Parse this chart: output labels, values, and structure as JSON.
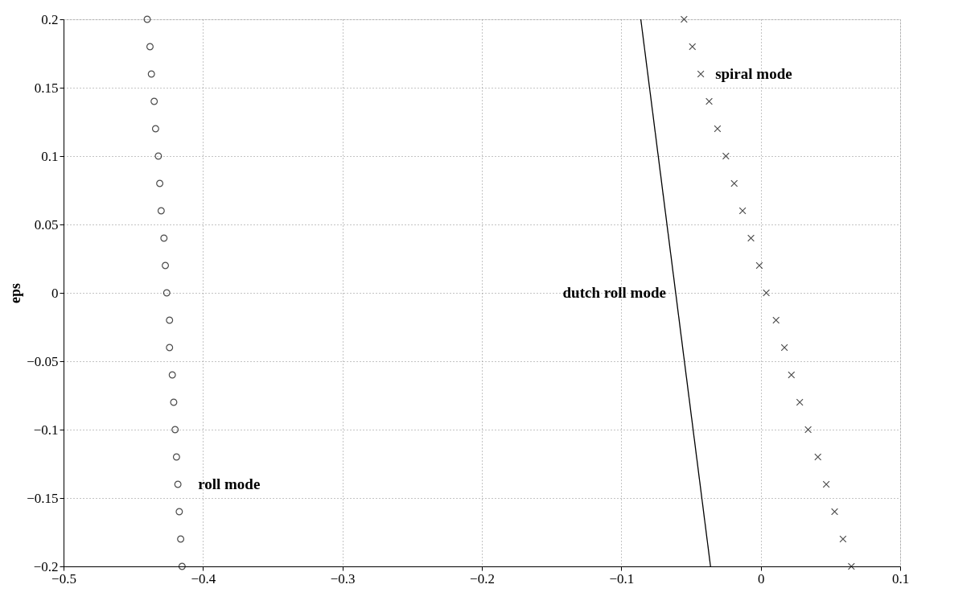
{
  "chart_data": {
    "type": "scatter",
    "ylabel": "eps",
    "xlim": [
      -0.5,
      0.1
    ],
    "xticks": [
      -0.5,
      -0.4,
      -0.3,
      -0.2,
      -0.1,
      0,
      0.1
    ],
    "ylim": [
      -0.2,
      0.2
    ],
    "yticks": [
      -0.2,
      -0.15,
      -0.1,
      -0.05,
      0,
      0.05,
      0.1,
      0.15,
      0.2
    ],
    "grid": true,
    "series": [
      {
        "name": "roll mode",
        "marker": "circle",
        "color": "#000000",
        "x": [
          -0.44,
          -0.438,
          -0.437,
          -0.435,
          -0.434,
          -0.432,
          -0.431,
          -0.43,
          -0.428,
          -0.427,
          -0.426,
          -0.424,
          -0.424,
          -0.422,
          -0.421,
          -0.42,
          -0.419,
          -0.418,
          -0.417,
          -0.416,
          -0.415
        ],
        "values": [
          0.2,
          0.18,
          0.16,
          0.14,
          0.12,
          0.1,
          0.08,
          0.06,
          0.04,
          0.02,
          0,
          -0.02,
          -0.04,
          -0.06,
          -0.08,
          -0.1,
          -0.12,
          -0.14,
          -0.16,
          -0.18,
          -0.2
        ]
      },
      {
        "name": "spiral mode",
        "marker": "cross",
        "color": "#000000",
        "x": [
          -0.055,
          -0.049,
          -0.043,
          -0.037,
          -0.031,
          -0.025,
          -0.019,
          -0.013,
          -0.007,
          -0.001,
          0.004,
          0.011,
          0.017,
          0.022,
          0.028,
          0.034,
          0.041,
          0.047,
          0.053,
          0.059,
          0.065
        ],
        "values": [
          0.2,
          0.18,
          0.16,
          0.14,
          0.12,
          0.1,
          0.08,
          0.06,
          0.04,
          0.02,
          0,
          -0.02,
          -0.04,
          -0.06,
          -0.08,
          -0.1,
          -0.12,
          -0.14,
          -0.16,
          -0.18,
          -0.2
        ]
      },
      {
        "name": "dutch roll mode",
        "type": "line",
        "line_style": "solid",
        "marker": "none",
        "color": "#000000",
        "x": [
          -0.086,
          -0.036
        ],
        "values": [
          0.2,
          -0.2
        ]
      }
    ]
  }
}
